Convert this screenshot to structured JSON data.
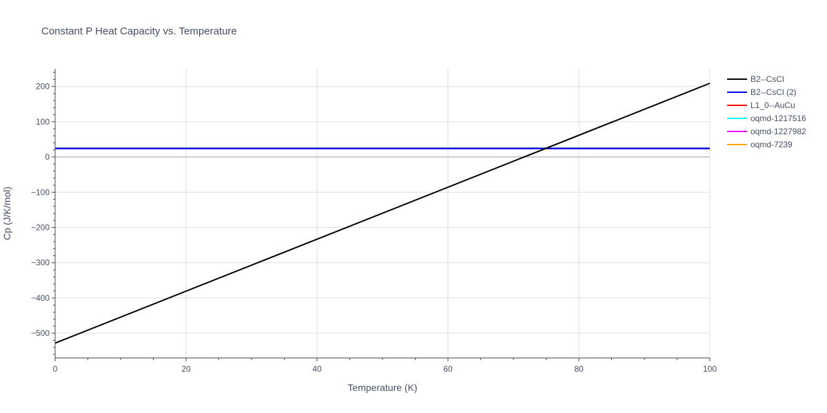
{
  "chart_data": {
    "type": "line",
    "title": "Constant P Heat Capacity vs. Temperature",
    "xlabel": "Temperature (K)",
    "ylabel": "Cp (J/K/mol)",
    "xlim": [
      0,
      100
    ],
    "ylim": [
      -570,
      250
    ],
    "x_ticks": [
      0,
      20,
      40,
      60,
      80,
      100
    ],
    "y_ticks": [
      -500,
      -400,
      -300,
      -200,
      -100,
      0,
      100,
      200
    ],
    "x_tick_labels": [
      "0",
      "20",
      "40",
      "60",
      "80",
      "100"
    ],
    "y_tick_labels": [
      "−500",
      "−400",
      "−300",
      "−200",
      "−100",
      "0",
      "100",
      "200"
    ],
    "grid": true,
    "legend_position": "right",
    "series": [
      {
        "name": "B2--CsCl",
        "color": "#000000",
        "x": [
          0,
          100
        ],
        "y": [
          -528,
          209
        ]
      },
      {
        "name": "B2--CsCl (2)",
        "color": "#0000ff",
        "x": [
          0,
          100
        ],
        "y": [
          24,
          24
        ]
      },
      {
        "name": "L1_0--AuCu",
        "color": "#ff0000",
        "x": [
          0,
          100
        ],
        "y": [
          24,
          24
        ]
      },
      {
        "name": "oqmd-1217516",
        "color": "#00ffff",
        "x": [
          0,
          100
        ],
        "y": [
          25,
          25
        ]
      },
      {
        "name": "oqmd-1227982",
        "color": "#ff00ff",
        "x": [
          0,
          100
        ],
        "y": [
          25,
          25
        ]
      },
      {
        "name": "oqmd-7239",
        "color": "#ffa500",
        "x": [
          0,
          100
        ],
        "y": [
          25,
          25
        ]
      }
    ]
  }
}
